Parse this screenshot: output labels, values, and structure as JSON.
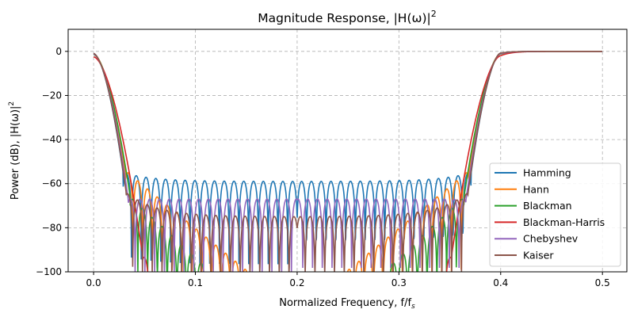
{
  "chart_data": {
    "type": "line",
    "title": "Magnitude Response, |H(ω)|",
    "title_sup": "2",
    "xlabel": "Normalized Frequency, f/f",
    "xlabel_sub": "s",
    "ylabel": "Power (dB), |H(ω)|",
    "ylabel_sup": "2",
    "xlim": [
      -0.025,
      0.524
    ],
    "ylim": [
      -100,
      10
    ],
    "xticks": [
      0.0,
      0.1,
      0.2,
      0.3,
      0.4,
      0.5
    ],
    "xtick_labels": [
      "0.0",
      "0.1",
      "0.2",
      "0.3",
      "0.4",
      "0.5"
    ],
    "yticks": [
      0,
      -20,
      -40,
      -60,
      -80,
      -100
    ],
    "ytick_labels": [
      "0",
      "−20",
      "−40",
      "−60",
      "−80",
      "−100"
    ],
    "grid": true,
    "legend_position": "lower-right",
    "passband": [
      [
        0.0,
        0.0
      ],
      [
        0.4,
        0.5
      ]
    ],
    "stopband_center": 0.2,
    "series": [
      {
        "name": "Hamming",
        "color": "#1f77b4",
        "start_db": -1.0,
        "transition_width": 0.029,
        "sidelobe_start_db": -55,
        "sidelobe_floor_db": -59,
        "sidelobe_spacing": 0.0096
      },
      {
        "name": "Hann",
        "color": "#ff7f0e",
        "start_db": -1.2,
        "transition_width": 0.031,
        "sidelobe_start_db": -54,
        "sidelobe_decay_db_per_unit": 380,
        "sidelobe_spacing": 0.0096
      },
      {
        "name": "Blackman",
        "color": "#2ca02c",
        "start_db": -1.5,
        "transition_width": 0.036,
        "sidelobe_start_db": -66,
        "sidelobe_decay_db_per_unit": 430,
        "sidelobe_spacing": 0.0096
      },
      {
        "name": "Blackman-Harris",
        "color": "#d62728",
        "start_db": -2.5,
        "transition_width": 0.048,
        "sidelobe_start_db": -92,
        "sidelobe_decay_db_per_unit": 700,
        "sidelobe_spacing": 0.0096
      },
      {
        "name": "Chebyshev",
        "color": "#9467bd",
        "start_db": -1.3,
        "transition_width": 0.034,
        "sidelobe_start_db": -67,
        "sidelobe_floor_db": -67,
        "sidelobe_spacing": 0.0096
      },
      {
        "name": "Kaiser",
        "color": "#8c564b",
        "start_db": -1.0,
        "transition_width": 0.032,
        "sidelobe_start_db": -64,
        "sidelobe_floor_db": -75,
        "sidelobe_spacing": 0.0096
      }
    ]
  }
}
